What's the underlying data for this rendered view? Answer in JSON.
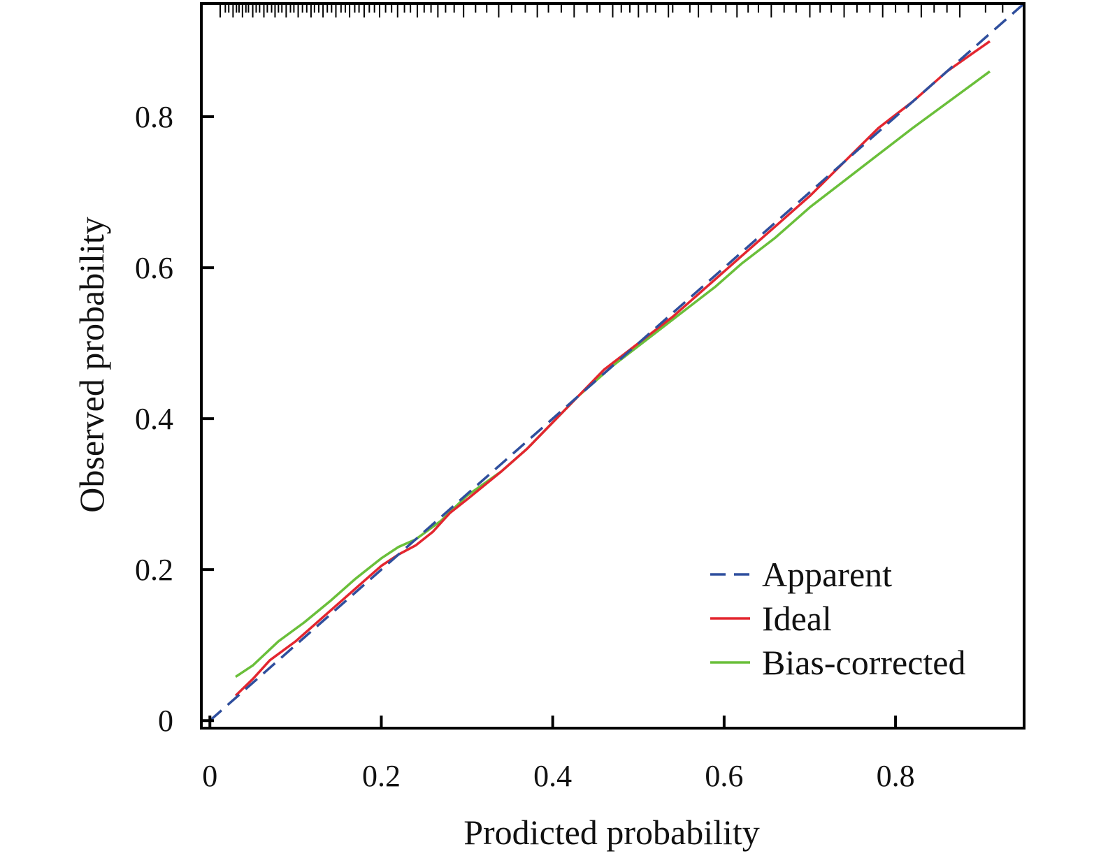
{
  "chart_data": {
    "type": "line",
    "xlabel": "Prodicted probability",
    "ylabel": "Observed probability",
    "xlim": [
      -0.01,
      0.95
    ],
    "ylim": [
      -0.01,
      0.95
    ],
    "xticks": [
      0,
      0.2,
      0.4,
      0.6,
      0.8
    ],
    "xtick_labels": [
      "0",
      "0.2",
      "0.4",
      "0.6",
      "0.8"
    ],
    "yticks": [
      0,
      0.2,
      0.4,
      0.6,
      0.8
    ],
    "ytick_labels": [
      "0",
      "0.2",
      "0.4",
      "0.6",
      "0.8"
    ],
    "grid": false,
    "legend_position": "bottom-right",
    "reference_line": {
      "style": "dashed",
      "color": "#1a1a1a",
      "x": [
        0,
        0.95
      ],
      "y": [
        0,
        0.95
      ]
    },
    "series": [
      {
        "name": "Apparent",
        "style": "dashed",
        "color": "#2f4f9e",
        "x": [
          0.0,
          0.03,
          0.06,
          0.1,
          0.14,
          0.18,
          0.2,
          0.24,
          0.28,
          0.32,
          0.36,
          0.4,
          0.44,
          0.48,
          0.52,
          0.56,
          0.6,
          0.64,
          0.68,
          0.72,
          0.76,
          0.8,
          0.84,
          0.88,
          0.92,
          0.95
        ],
        "y": [
          0.0,
          0.03,
          0.06,
          0.1,
          0.14,
          0.18,
          0.2,
          0.24,
          0.28,
          0.32,
          0.36,
          0.4,
          0.44,
          0.48,
          0.52,
          0.56,
          0.6,
          0.64,
          0.68,
          0.72,
          0.76,
          0.8,
          0.84,
          0.88,
          0.92,
          0.95
        ]
      },
      {
        "name": "Ideal",
        "style": "solid",
        "color": "#e3262f",
        "x": [
          0.03,
          0.05,
          0.07,
          0.1,
          0.13,
          0.16,
          0.18,
          0.2,
          0.22,
          0.24,
          0.26,
          0.28,
          0.3,
          0.34,
          0.37,
          0.4,
          0.43,
          0.46,
          0.5,
          0.54,
          0.58,
          0.62,
          0.66,
          0.7,
          0.74,
          0.78,
          0.82,
          0.86,
          0.91
        ],
        "y": [
          0.033,
          0.055,
          0.08,
          0.105,
          0.135,
          0.165,
          0.185,
          0.205,
          0.22,
          0.232,
          0.25,
          0.275,
          0.293,
          0.33,
          0.36,
          0.395,
          0.43,
          0.465,
          0.5,
          0.535,
          0.575,
          0.615,
          0.655,
          0.695,
          0.74,
          0.785,
          0.82,
          0.86,
          0.9
        ]
      },
      {
        "name": "Bias-corrected",
        "style": "solid",
        "color": "#6abf3a",
        "x": [
          0.03,
          0.05,
          0.08,
          0.11,
          0.14,
          0.17,
          0.2,
          0.22,
          0.24,
          0.27,
          0.3,
          0.34,
          0.37,
          0.4,
          0.43,
          0.47,
          0.51,
          0.55,
          0.59,
          0.62,
          0.66,
          0.7,
          0.74,
          0.78,
          0.82,
          0.85,
          0.88,
          0.91
        ],
        "y": [
          0.058,
          0.073,
          0.105,
          0.13,
          0.158,
          0.188,
          0.215,
          0.23,
          0.24,
          0.265,
          0.298,
          0.33,
          0.36,
          0.395,
          0.43,
          0.47,
          0.505,
          0.54,
          0.575,
          0.605,
          0.64,
          0.68,
          0.715,
          0.75,
          0.785,
          0.81,
          0.835,
          0.86
        ]
      }
    ],
    "rug_x": [
      0.012,
      0.018,
      0.022,
      0.027,
      0.031,
      0.034,
      0.038,
      0.042,
      0.045,
      0.05,
      0.054,
      0.058,
      0.063,
      0.067,
      0.072,
      0.076,
      0.08,
      0.084,
      0.089,
      0.094,
      0.098,
      0.103,
      0.108,
      0.113,
      0.118,
      0.122,
      0.127,
      0.132,
      0.137,
      0.142,
      0.147,
      0.153,
      0.158,
      0.163,
      0.169,
      0.174,
      0.18,
      0.186,
      0.192,
      0.198,
      0.205,
      0.212,
      0.219,
      0.227,
      0.234,
      0.242,
      0.25,
      0.258,
      0.266,
      0.275,
      0.285,
      0.296,
      0.31,
      0.323,
      0.337,
      0.352,
      0.368,
      0.382,
      0.395,
      0.41,
      0.425,
      0.44,
      0.455,
      0.47,
      0.49,
      0.51,
      0.535,
      0.54,
      0.56,
      0.5,
      0.52,
      0.48,
      0.57,
      0.585,
      0.602,
      0.615,
      0.628,
      0.64,
      0.655,
      0.67,
      0.684,
      0.7,
      0.712,
      0.725,
      0.74,
      0.755,
      0.77,
      0.785,
      0.8,
      0.815,
      0.83,
      0.845,
      0.86,
      0.875,
      0.905,
      0.925
    ]
  }
}
